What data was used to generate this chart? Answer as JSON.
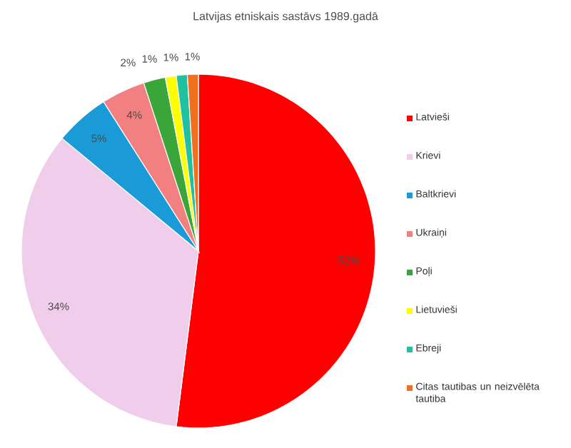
{
  "chart_data": {
    "type": "pie",
    "title": "Latvijas etniskais sastāvs 1989.gadā",
    "categories": [
      "Latvieši",
      "Krievi",
      "Baltkrievi",
      "Ukraiņi",
      "Poļi",
      "Lietuvieši",
      "Ebreji",
      "Citas tautibas un neizvēlēta tautiba"
    ],
    "values": [
      52,
      34,
      5,
      4,
      2,
      1,
      1,
      1
    ],
    "value_labels": [
      "52%",
      "34%",
      "5%",
      "4%",
      "2%",
      "1%",
      "1%",
      "1%"
    ],
    "colors": [
      "#ff0000",
      "#f0cdea",
      "#1a9bd7",
      "#f28080",
      "#3aa63a",
      "#ffff00",
      "#20c0a0",
      "#f07020"
    ],
    "legend": "right"
  }
}
